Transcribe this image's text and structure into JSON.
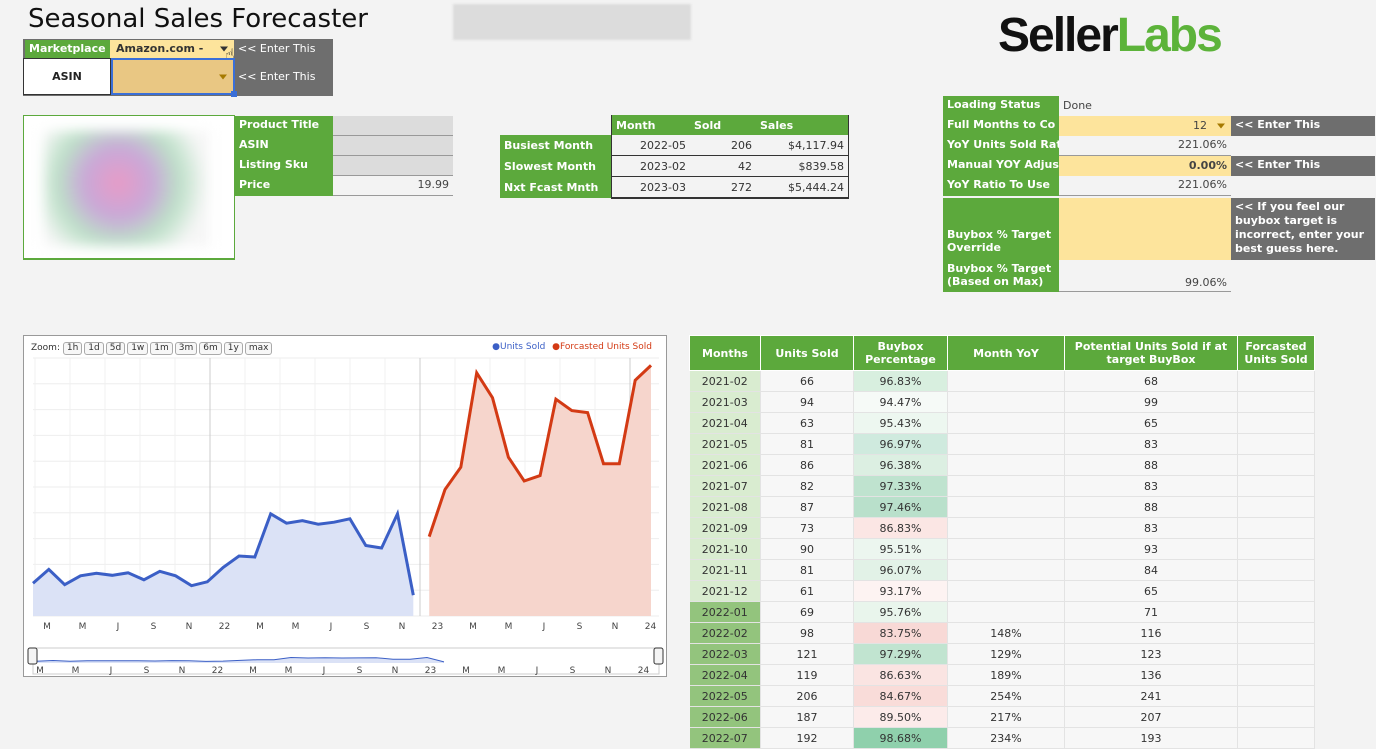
{
  "app_title": "Seasonal Sales Forecaster",
  "logo": {
    "seller": "Seller",
    "labs": "Labs"
  },
  "inputs": {
    "marketplace_label": "Marketplace",
    "marketplace_value": "Amazon.com -",
    "asin_label": "ASIN",
    "hint": "<< Enter This"
  },
  "product": {
    "rows": [
      {
        "label": "Product Title",
        "value": ""
      },
      {
        "label": "ASIN",
        "value": ""
      },
      {
        "label": "Listing Sku",
        "value": ""
      },
      {
        "label": "Price",
        "value": "19.99"
      }
    ]
  },
  "summary": {
    "headers": [
      "Month",
      "Sold",
      "Sales"
    ],
    "rows": [
      {
        "label": "Busiest Month",
        "month": "2022-05",
        "sold": "206",
        "sales": "$4,117.94"
      },
      {
        "label": "Slowest Month",
        "month": "2023-02",
        "sold": "42",
        "sales": "$839.58"
      },
      {
        "label": "Nxt Fcast Mnth",
        "month": "2023-03",
        "sold": "272",
        "sales": "$5,444.24"
      }
    ]
  },
  "settings": {
    "loading_status_label": "Loading Status",
    "loading_status_value": "Done",
    "full_months_label": "Full Months to Co",
    "full_months_value": "12",
    "yoy_units_label": "YoY Units Sold Rat",
    "yoy_units_value": "221.06%",
    "manual_yoy_label": "Manual YOY Adjus",
    "manual_yoy_value": "0.00%",
    "yoy_use_label": "YoY Ratio To Use",
    "yoy_use_value": "221.06%",
    "buybox_override_label": "Buybox % Target Override",
    "buybox_override_hint": "<< If you feel our buybox target is incorrect, enter your best guess here.",
    "buybox_max_label": "Buybox % Target (Based on Max)",
    "buybox_max_value": "99.06%",
    "hint": "<< Enter This"
  },
  "chart_data": {
    "type": "area",
    "zoom_label": "Zoom:",
    "zoom_buttons": [
      "1h",
      "1d",
      "5d",
      "1w",
      "1m",
      "3m",
      "6m",
      "1y",
      "max"
    ],
    "legend": [
      "Units Sold",
      "Forcasted Units Sold"
    ],
    "colors": {
      "units": "#3b5fc6",
      "forecast": "#d33a14"
    },
    "x_ticks": [
      "M",
      "M",
      "J",
      "S",
      "N",
      "22",
      "M",
      "M",
      "J",
      "S",
      "N",
      "23",
      "M",
      "M",
      "J",
      "S",
      "N",
      "24"
    ],
    "units_sold": [
      66,
      94,
      63,
      81,
      86,
      82,
      87,
      73,
      90,
      81,
      61,
      69,
      98,
      121,
      119,
      206,
      187,
      192,
      185,
      189,
      196,
      142,
      137,
      206,
      42
    ],
    "forecast": [
      160,
      255,
      300,
      490,
      440,
      320,
      272,
      283,
      437,
      414,
      410,
      307,
      307,
      475,
      505
    ],
    "ylim": [
      0,
      520
    ]
  },
  "table": {
    "headers": [
      "Months",
      "Units Sold",
      "Buybox Percentage",
      "Month YoY",
      "Potential Units Sold if at target BuyBox",
      "Forcasted Units Sold"
    ],
    "rows": [
      {
        "month": "2021-02",
        "units": "66",
        "buybox": "96.83%",
        "bb_color": "#d8efdf",
        "yoy": "",
        "potential": "68",
        "forecast": ""
      },
      {
        "month": "2021-03",
        "units": "94",
        "buybox": "94.47%",
        "bb_color": "#f6faf7",
        "yoy": "",
        "potential": "99",
        "forecast": ""
      },
      {
        "month": "2021-04",
        "units": "63",
        "buybox": "95.43%",
        "bb_color": "#edf7f0",
        "yoy": "",
        "potential": "65",
        "forecast": ""
      },
      {
        "month": "2021-05",
        "units": "81",
        "buybox": "96.97%",
        "bb_color": "#cfeade",
        "yoy": "",
        "potential": "83",
        "forecast": ""
      },
      {
        "month": "2021-06",
        "units": "86",
        "buybox": "96.38%",
        "bb_color": "#dcefe2",
        "yoy": "",
        "potential": "88",
        "forecast": ""
      },
      {
        "month": "2021-07",
        "units": "82",
        "buybox": "97.33%",
        "bb_color": "#bfe3cf",
        "yoy": "",
        "potential": "83",
        "forecast": ""
      },
      {
        "month": "2021-08",
        "units": "87",
        "buybox": "97.46%",
        "bb_color": "#b9e0cb",
        "yoy": "",
        "potential": "88",
        "forecast": ""
      },
      {
        "month": "2021-09",
        "units": "73",
        "buybox": "86.83%",
        "bb_color": "#fbe6e4",
        "yoy": "",
        "potential": "83",
        "forecast": ""
      },
      {
        "month": "2021-10",
        "units": "90",
        "buybox": "95.51%",
        "bb_color": "#ecf6ef",
        "yoy": "",
        "potential": "93",
        "forecast": ""
      },
      {
        "month": "2021-11",
        "units": "81",
        "buybox": "96.07%",
        "bb_color": "#e2f2e7",
        "yoy": "",
        "potential": "84",
        "forecast": ""
      },
      {
        "month": "2021-12",
        "units": "61",
        "buybox": "93.17%",
        "bb_color": "#fdf3f2",
        "yoy": "",
        "potential": "65",
        "forecast": ""
      },
      {
        "month": "2022-01",
        "units": "69",
        "buybox": "95.76%",
        "bb_color": "#e9f5ec",
        "yoy": "",
        "potential": "71",
        "forecast": ""
      },
      {
        "month": "2022-02",
        "units": "98",
        "buybox": "83.75%",
        "bb_color": "#f8d9d6",
        "yoy": "148%",
        "potential": "116",
        "forecast": ""
      },
      {
        "month": "2022-03",
        "units": "121",
        "buybox": "97.29%",
        "bb_color": "#c1e4d0",
        "yoy": "129%",
        "potential": "123",
        "forecast": ""
      },
      {
        "month": "2022-04",
        "units": "119",
        "buybox": "86.63%",
        "bb_color": "#fae4e2",
        "yoy": "189%",
        "potential": "136",
        "forecast": ""
      },
      {
        "month": "2022-05",
        "units": "206",
        "buybox": "84.67%",
        "bb_color": "#f9dcd9",
        "yoy": "254%",
        "potential": "241",
        "forecast": ""
      },
      {
        "month": "2022-06",
        "units": "187",
        "buybox": "89.50%",
        "bb_color": "#fcebea",
        "yoy": "217%",
        "potential": "207",
        "forecast": ""
      },
      {
        "month": "2022-07",
        "units": "192",
        "buybox": "98.68%",
        "bb_color": "#8fd0ac",
        "yoy": "234%",
        "potential": "193",
        "forecast": ""
      }
    ]
  }
}
